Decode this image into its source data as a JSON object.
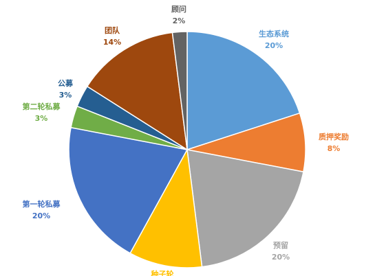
{
  "chart_data": {
    "type": "pie",
    "categories": [
      "生态系统",
      "质押奖励",
      "预留",
      "种子轮",
      "第一轮私募",
      "第二轮私募",
      "公募",
      "团队",
      "顾问"
    ],
    "values": [
      20,
      8,
      20,
      10,
      20,
      3,
      3,
      14,
      2
    ],
    "value_labels": [
      "20%",
      "8%",
      "20%",
      null,
      "20%",
      "3%",
      "3%",
      "14%",
      "2%"
    ],
    "colors": [
      "#5b9bd5",
      "#ed7d31",
      "#a5a5a5",
      "#ffc000",
      "#4472c4",
      "#70ad47",
      "#255e91",
      "#9e480e",
      "#636363"
    ]
  }
}
